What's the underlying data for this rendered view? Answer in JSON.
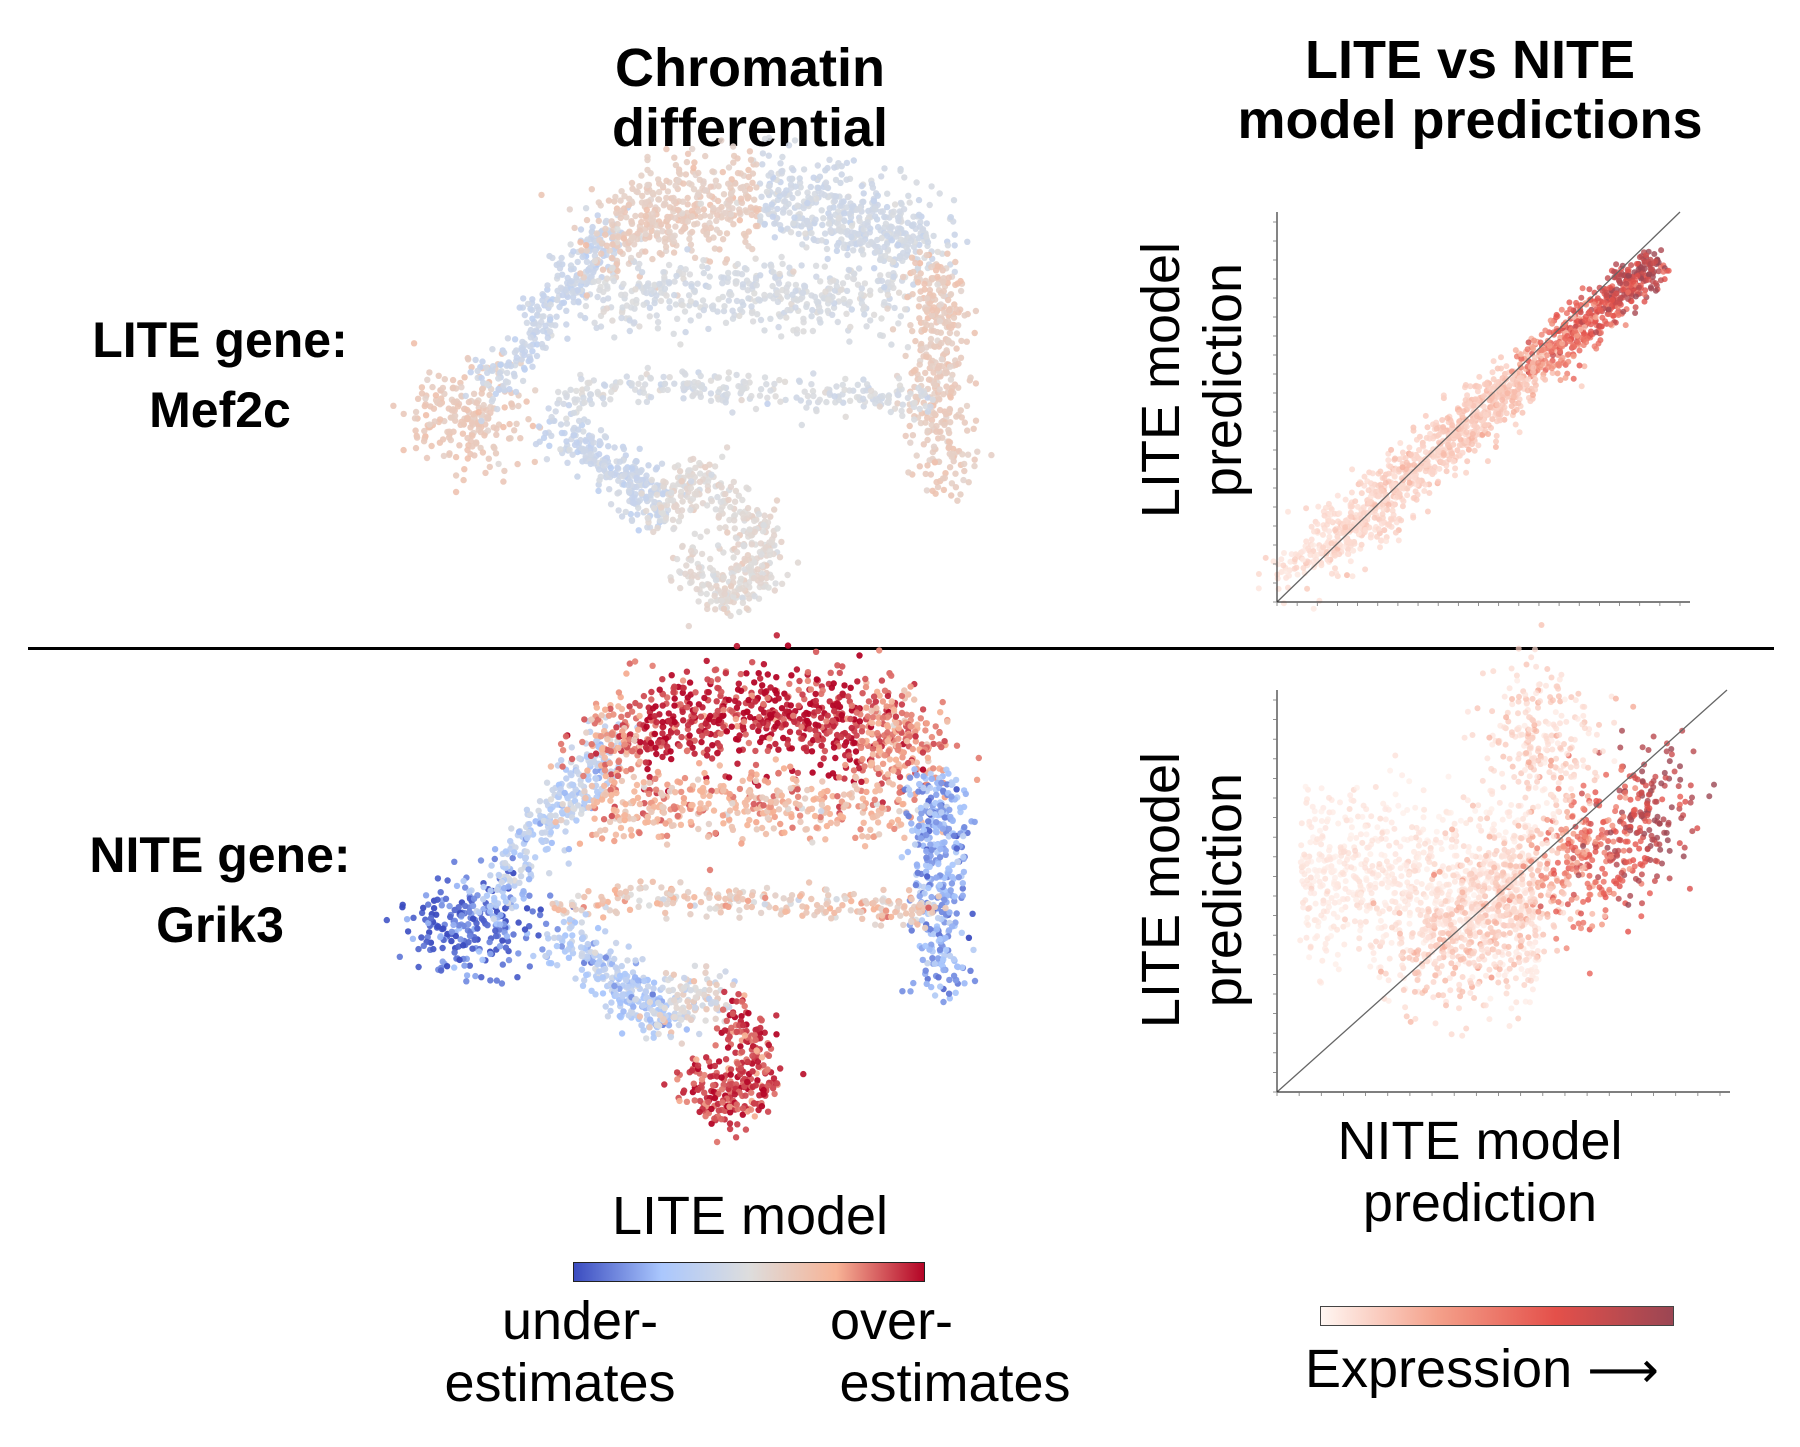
{
  "titles": {
    "col1_line1": "Chromatin",
    "col1_line2": "differential",
    "col2_line1": "LITE vs NITE",
    "col2_line2": "model predictions"
  },
  "rows": [
    {
      "label_line1": "LITE gene:",
      "label_line2": "Mef2c"
    },
    {
      "label_line1": "NITE gene:",
      "label_line2": "Grik3"
    }
  ],
  "axes": {
    "ylabel_line1": "LITE model",
    "ylabel_line2": "prediction",
    "xlabel_line1": "NITE model",
    "xlabel_line2": "prediction"
  },
  "legend_diverging": {
    "title": "LITE model",
    "left_line1": "under-",
    "left_line2": "estimates",
    "right_line1": "over-",
    "right_line2": "estimates",
    "colors": [
      "#3b4cc0",
      "#aac7fd",
      "#dddddd",
      "#f7b396",
      "#b40426"
    ]
  },
  "legend_expression": {
    "label": "Expression",
    "arrow": "⟶",
    "colors": [
      "#fff6f2",
      "#f4a08a",
      "#e4504a",
      "#9b4653"
    ]
  }
}
